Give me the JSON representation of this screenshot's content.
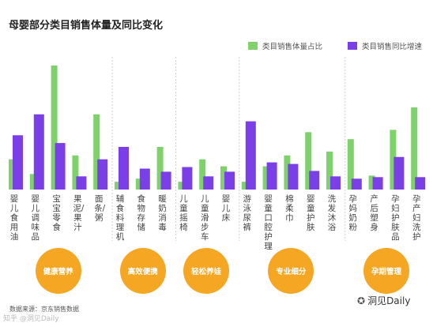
{
  "title": "母婴部分类目销售体量及同比变化",
  "legend": [
    {
      "label": "类目销售体量占比",
      "color": "#7ed16b"
    },
    {
      "label": "类目销售同比增速",
      "color": "#7b3fe8"
    }
  ],
  "chart_data": {
    "type": "bar",
    "title": "母婴部分类目销售体量及同比变化",
    "categories": [
      "婴儿食用油",
      "婴儿调味品",
      "宝宝零食",
      "果泥/果汁",
      "面条/粥",
      "辅食料理机",
      "食物存储",
      "暖奶消毒",
      "儿童摇椅",
      "儿童滑步车",
      "婴儿床",
      "游泳尿裤",
      "婴童口腔护理",
      "棉柔巾",
      "婴童护肤",
      "洗发沐浴",
      "孕妈奶粉",
      "产后塑身",
      "孕妇护肤品",
      "孕产妇洗护"
    ],
    "series": [
      {
        "name": "类目销售体量占比",
        "values": [
          39,
          20,
          160,
          44,
          97,
          10,
          14,
          55,
          10,
          39,
          30,
          10,
          30,
          44,
          74,
          49,
          65,
          18,
          77,
          106
        ]
      },
      {
        "name": "类目销售同比增速",
        "values": [
          70,
          97,
          60,
          17,
          39,
          55,
          27,
          23,
          29,
          17,
          23,
          88,
          35,
          33,
          24,
          17,
          14,
          16,
          42,
          16
        ]
      }
    ],
    "ylim": [
      0,
      165
    ],
    "groups": [
      {
        "label": "健康营养",
        "start": 0,
        "end": 4
      },
      {
        "label": "高效便携",
        "start": 5,
        "end": 7
      },
      {
        "label": "轻松养娃",
        "start": 8,
        "end": 10
      },
      {
        "label": "专业细分",
        "start": 11,
        "end": 15
      },
      {
        "label": "孕期管理",
        "start": 16,
        "end": 19
      }
    ]
  },
  "source": "数据来源：京东销售数据",
  "brand": "洞见Daily",
  "watermark": "知乎 @洞见Daily",
  "icons": {
    "brand": "wechat-icon"
  }
}
